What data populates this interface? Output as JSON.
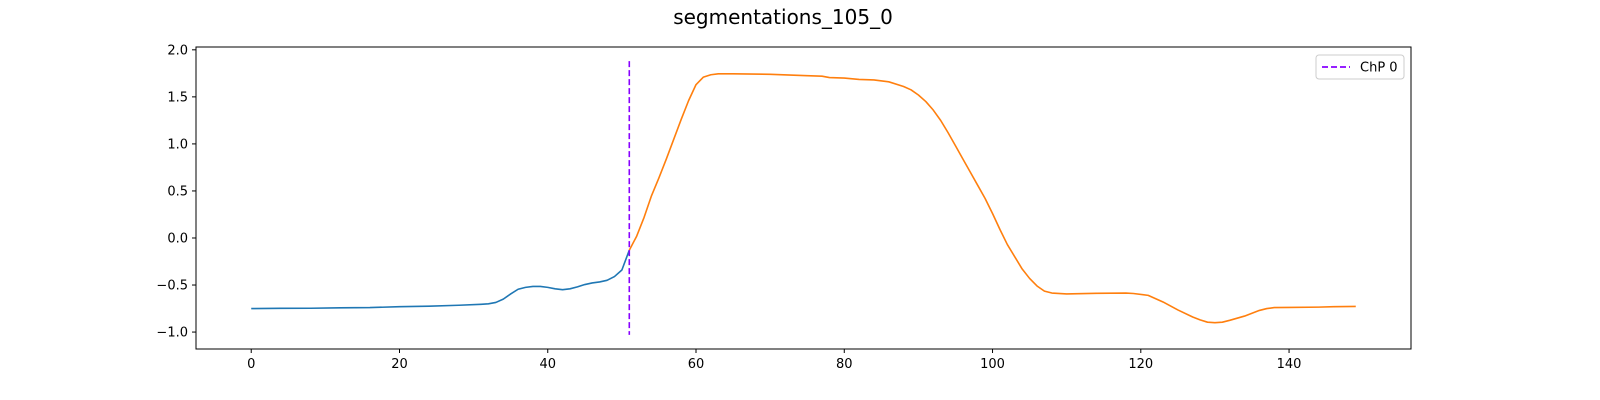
{
  "chart_data": {
    "type": "line",
    "title": "segmentations_105_0",
    "xlabel": "",
    "ylabel": "",
    "xlim": [
      -7.45,
      156.45
    ],
    "ylim": [
      -1.18,
      2.03
    ],
    "xticks": [
      0,
      20,
      40,
      60,
      80,
      100,
      120,
      140
    ],
    "xtick_labels": [
      "0",
      "20",
      "40",
      "60",
      "80",
      "100",
      "120",
      "140"
    ],
    "yticks": [
      -1.0,
      -0.5,
      0.0,
      0.5,
      1.0,
      1.5,
      2.0
    ],
    "ytick_labels": [
      "−1.0",
      "−0.5",
      "0.0",
      "0.5",
      "1.0",
      "1.5",
      "2.0"
    ],
    "grid": false,
    "legend": {
      "placement": "top-right",
      "entries": [
        {
          "label": "ChP 0",
          "style": "dashed",
          "color": "#8800ff"
        }
      ]
    },
    "series": [
      {
        "color": "#1f77b4",
        "points": [
          [
            0,
            -0.75
          ],
          [
            4,
            -0.748
          ],
          [
            8,
            -0.747
          ],
          [
            12,
            -0.742
          ],
          [
            16,
            -0.74
          ],
          [
            20,
            -0.73
          ],
          [
            24,
            -0.725
          ],
          [
            28,
            -0.715
          ],
          [
            31,
            -0.705
          ],
          [
            32,
            -0.7
          ],
          [
            33,
            -0.685
          ],
          [
            34,
            -0.65
          ],
          [
            35,
            -0.595
          ],
          [
            36,
            -0.545
          ],
          [
            37,
            -0.525
          ],
          [
            38,
            -0.515
          ],
          [
            39,
            -0.515
          ],
          [
            40,
            -0.525
          ],
          [
            41,
            -0.54
          ],
          [
            42,
            -0.55
          ],
          [
            43,
            -0.54
          ],
          [
            44,
            -0.52
          ],
          [
            45,
            -0.495
          ],
          [
            46,
            -0.478
          ],
          [
            47,
            -0.467
          ],
          [
            48,
            -0.45
          ],
          [
            49,
            -0.41
          ],
          [
            50,
            -0.34
          ],
          [
            51,
            -0.13
          ]
        ]
      },
      {
        "color": "#ff7f0e",
        "points": [
          [
            51,
            -0.13
          ],
          [
            52,
            0.02
          ],
          [
            53,
            0.22
          ],
          [
            54,
            0.45
          ],
          [
            55,
            0.64
          ],
          [
            56,
            0.84
          ],
          [
            57,
            1.05
          ],
          [
            58,
            1.26
          ],
          [
            59,
            1.46
          ],
          [
            60,
            1.63
          ],
          [
            61,
            1.71
          ],
          [
            62,
            1.735
          ],
          [
            63,
            1.745
          ],
          [
            65,
            1.745
          ],
          [
            70,
            1.74
          ],
          [
            75,
            1.725
          ],
          [
            77,
            1.72
          ],
          [
            78,
            1.705
          ],
          [
            80,
            1.7
          ],
          [
            82,
            1.685
          ],
          [
            84,
            1.68
          ],
          [
            86,
            1.66
          ],
          [
            88,
            1.61
          ],
          [
            89,
            1.575
          ],
          [
            90,
            1.52
          ],
          [
            91,
            1.45
          ],
          [
            92,
            1.36
          ],
          [
            93,
            1.25
          ],
          [
            94,
            1.12
          ],
          [
            95,
            0.98
          ],
          [
            96,
            0.84
          ],
          [
            97,
            0.7
          ],
          [
            98,
            0.56
          ],
          [
            99,
            0.42
          ],
          [
            100,
            0.26
          ],
          [
            101,
            0.09
          ],
          [
            102,
            -0.07
          ],
          [
            103,
            -0.2
          ],
          [
            104,
            -0.33
          ],
          [
            105,
            -0.43
          ],
          [
            106,
            -0.51
          ],
          [
            107,
            -0.565
          ],
          [
            108,
            -0.585
          ],
          [
            110,
            -0.595
          ],
          [
            114,
            -0.588
          ],
          [
            118,
            -0.585
          ],
          [
            119,
            -0.59
          ],
          [
            121,
            -0.61
          ],
          [
            123,
            -0.68
          ],
          [
            125,
            -0.765
          ],
          [
            127,
            -0.84
          ],
          [
            128,
            -0.87
          ],
          [
            129,
            -0.895
          ],
          [
            130,
            -0.9
          ],
          [
            131,
            -0.895
          ],
          [
            132,
            -0.875
          ],
          [
            134,
            -0.83
          ],
          [
            136,
            -0.77
          ],
          [
            137,
            -0.75
          ],
          [
            138,
            -0.74
          ],
          [
            140,
            -0.738
          ],
          [
            144,
            -0.735
          ],
          [
            146,
            -0.73
          ],
          [
            149,
            -0.728
          ]
        ]
      }
    ],
    "changepoints": [
      {
        "label": "ChP 0",
        "x": 51,
        "y_range": [
          -1.03,
          1.88
        ],
        "color": "#8800ff"
      }
    ]
  }
}
